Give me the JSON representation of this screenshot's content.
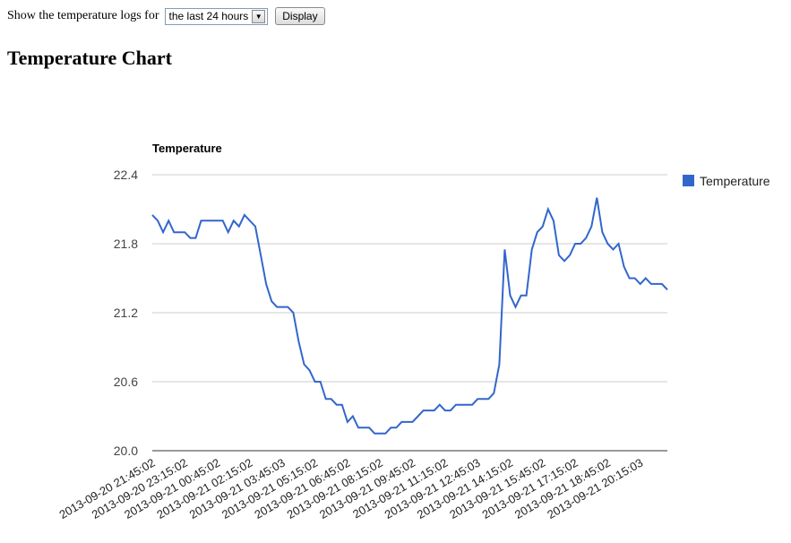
{
  "form": {
    "prompt": "Show the temperature logs for",
    "select_value": "the last 24 hours",
    "display_label": "Display"
  },
  "page": {
    "title": "Temperature Chart"
  },
  "chart_data": {
    "type": "line",
    "title": "Temperature",
    "xlabel": "",
    "ylabel": "",
    "ylim": [
      20.0,
      22.4
    ],
    "yticks": [
      20.0,
      20.6,
      21.2,
      21.8,
      22.4
    ],
    "grid": true,
    "legend": "right",
    "colors": {
      "series": "#3366cc",
      "grid": "#cccccc",
      "axis": "#333333"
    },
    "x_tick_labels": [
      "2013-09-20 21:45:02",
      "2013-09-20 23:15:02",
      "2013-09-21 00:45:02",
      "2013-09-21 02:15:02",
      "2013-09-21 03:45:03",
      "2013-09-21 05:15:02",
      "2013-09-21 06:45:02",
      "2013-09-21 08:15:02",
      "2013-09-21 09:45:02",
      "2013-09-21 11:15:02",
      "2013-09-21 12:45:03",
      "2013-09-21 14:15:02",
      "2013-09-21 15:45:02",
      "2013-09-21 17:15:02",
      "2013-09-21 18:45:02",
      "2013-09-21 20:15:03"
    ],
    "series": [
      {
        "name": "Temperature",
        "values": [
          22.05,
          22.0,
          21.9,
          22.0,
          21.9,
          21.9,
          21.9,
          21.85,
          21.85,
          22.0,
          22.0,
          22.0,
          22.0,
          22.0,
          21.9,
          22.0,
          21.95,
          22.05,
          22.0,
          21.95,
          21.7,
          21.45,
          21.3,
          21.25,
          21.25,
          21.25,
          21.2,
          20.95,
          20.75,
          20.7,
          20.6,
          20.6,
          20.45,
          20.45,
          20.4,
          20.4,
          20.25,
          20.3,
          20.2,
          20.2,
          20.2,
          20.15,
          20.15,
          20.15,
          20.2,
          20.2,
          20.25,
          20.25,
          20.25,
          20.3,
          20.35,
          20.35,
          20.35,
          20.4,
          20.35,
          20.35,
          20.4,
          20.4,
          20.4,
          20.4,
          20.45,
          20.45,
          20.45,
          20.5,
          20.75,
          21.75,
          21.35,
          21.25,
          21.35,
          21.35,
          21.75,
          21.9,
          21.95,
          22.1,
          22.0,
          21.7,
          21.65,
          21.7,
          21.8,
          21.8,
          21.85,
          21.95,
          22.2,
          21.9,
          21.8,
          21.75,
          21.8,
          21.6,
          21.5,
          21.5,
          21.45,
          21.5,
          21.45,
          21.45,
          21.45,
          21.4
        ]
      }
    ]
  }
}
